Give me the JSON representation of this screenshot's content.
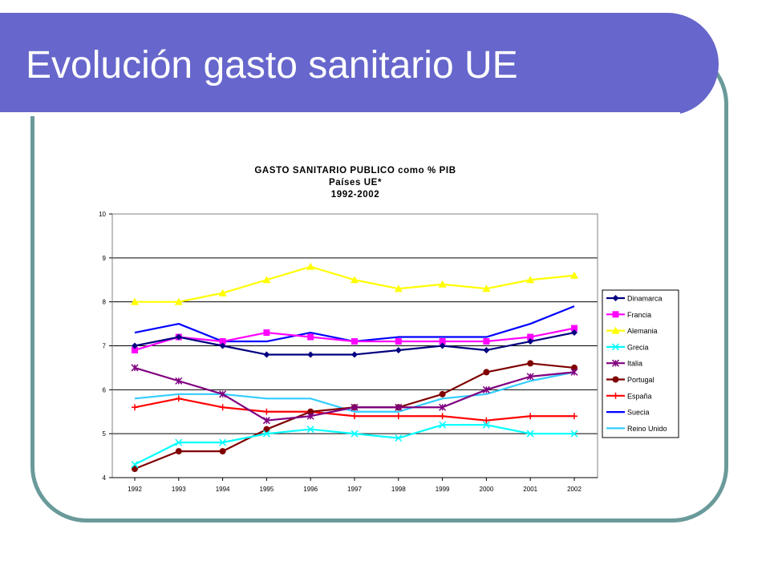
{
  "slide": {
    "title": "Evolución gasto sanitario UE"
  },
  "chart_data": {
    "type": "line",
    "title_lines": [
      "GASTO SANITARIO PUBLICO como % PIB",
      "Países UE*",
      "1992-2002"
    ],
    "xlabel": "",
    "ylabel": "",
    "x": [
      "1992",
      "1993",
      "1994",
      "1995",
      "1996",
      "1997",
      "1998",
      "1999",
      "2000",
      "2001",
      "2002"
    ],
    "ylim": [
      4,
      10
    ],
    "yticks": [
      "4",
      "5",
      "6",
      "7",
      "8",
      "9",
      "10"
    ],
    "grid": true,
    "legend_position": "right",
    "series": [
      {
        "name": "Dinamarca",
        "color": "#000080",
        "marker": "diamond",
        "values": [
          7.0,
          7.2,
          7.0,
          6.8,
          6.8,
          6.8,
          6.9,
          7.0,
          6.9,
          7.1,
          7.3
        ]
      },
      {
        "name": "Francia",
        "color": "#ff00ff",
        "marker": "square",
        "values": [
          6.9,
          7.2,
          7.1,
          7.3,
          7.2,
          7.1,
          7.1,
          7.1,
          7.1,
          7.2,
          7.4
        ]
      },
      {
        "name": "Alemania",
        "color": "#ffff00",
        "marker": "triangle",
        "values": [
          8.0,
          8.0,
          8.2,
          8.5,
          8.8,
          8.5,
          8.3,
          8.4,
          8.3,
          8.5,
          8.6
        ]
      },
      {
        "name": "Grecia",
        "color": "#00ffff",
        "marker": "x",
        "values": [
          4.3,
          4.8,
          4.8,
          5.0,
          5.1,
          5.0,
          4.9,
          5.2,
          5.2,
          5.0,
          5.0
        ]
      },
      {
        "name": "Italia",
        "color": "#800080",
        "marker": "star",
        "values": [
          6.5,
          6.2,
          5.9,
          5.3,
          5.4,
          5.6,
          5.6,
          5.6,
          6.0,
          6.3,
          6.4
        ]
      },
      {
        "name": "Portugal",
        "color": "#800000",
        "marker": "circle",
        "values": [
          4.2,
          4.6,
          4.6,
          5.1,
          5.5,
          5.6,
          5.6,
          5.9,
          6.4,
          6.6,
          6.5
        ]
      },
      {
        "name": "España",
        "color": "#ff0000",
        "marker": "plus",
        "values": [
          5.6,
          5.8,
          5.6,
          5.5,
          5.5,
          5.4,
          5.4,
          5.4,
          5.3,
          5.4,
          5.4
        ]
      },
      {
        "name": "Suecia",
        "color": "#0000ff",
        "marker": "none",
        "values": [
          7.3,
          7.5,
          7.1,
          7.1,
          7.3,
          7.1,
          7.2,
          7.2,
          7.2,
          7.5,
          7.9
        ]
      },
      {
        "name": "Reino Unido",
        "color": "#33ccff",
        "marker": "none",
        "values": [
          5.8,
          5.9,
          5.9,
          5.8,
          5.8,
          5.5,
          5.5,
          5.8,
          5.9,
          6.2,
          6.4
        ]
      }
    ]
  }
}
